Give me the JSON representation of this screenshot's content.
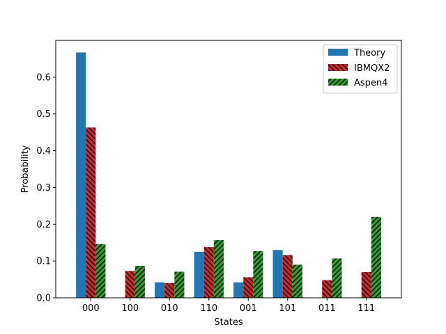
{
  "chart_data": {
    "type": "bar",
    "title": "",
    "xlabel": "States",
    "ylabel": "Probability",
    "categories": [
      "000",
      "100",
      "010",
      "110",
      "001",
      "101",
      "011",
      "111"
    ],
    "ylim": [
      0,
      0.7
    ],
    "yticks": [
      0.0,
      0.1,
      0.2,
      0.3,
      0.4,
      0.5,
      0.6
    ],
    "ytick_labels": [
      "0.0",
      "0.1",
      "0.2",
      "0.3",
      "0.4",
      "0.5",
      "0.6"
    ],
    "grid": false,
    "legend_position": "top-right",
    "series": [
      {
        "name": "Theory",
        "color": "#1f77b4",
        "hatch": "none",
        "values": [
          0.667,
          0.0,
          0.042,
          0.125,
          0.042,
          0.13,
          0.0,
          0.0
        ]
      },
      {
        "name": "IBMQX2",
        "color": "#d62728",
        "hatch": "backslash",
        "values": [
          0.463,
          0.073,
          0.04,
          0.138,
          0.056,
          0.116,
          0.048,
          0.07
        ]
      },
      {
        "name": "Aspen4",
        "color": "#2ca02c",
        "hatch": "slash",
        "values": [
          0.146,
          0.087,
          0.071,
          0.157,
          0.127,
          0.09,
          0.107,
          0.22
        ]
      }
    ]
  }
}
